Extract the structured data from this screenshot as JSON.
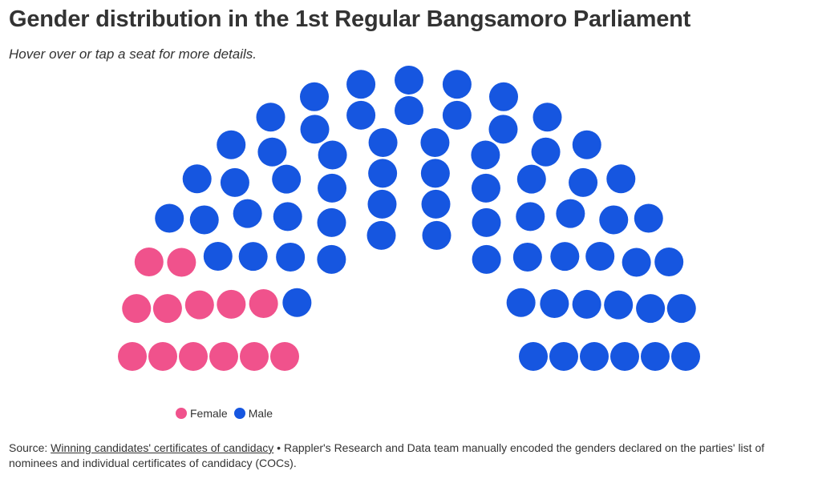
{
  "header": {
    "title": "Gender distribution in the 1st Regular Bangsamoro Parliament",
    "subtitle": "Hover over or tap a seat for more details."
  },
  "colors": {
    "female": "#f0528c",
    "male": "#1656e0"
  },
  "legend": {
    "items": [
      {
        "label": "Female",
        "color": "#f0528c"
      },
      {
        "label": "Male",
        "color": "#1656e0"
      }
    ]
  },
  "source": {
    "prefix": "Source: ",
    "link_text": "Winning candidates' certificates of candidacy",
    "separator": " • ",
    "note": "Rappler's Research and Data team manually encoded the genders declared on the parties' list of nominees and individual certificates of candidacy (COCs)."
  },
  "chart_data": {
    "type": "parliament",
    "title": "Gender distribution in the 1st Regular Bangsamoro Parliament",
    "total_seats": 80,
    "series": [
      {
        "name": "Female",
        "value": 13
      },
      {
        "name": "Male",
        "value": 67
      }
    ]
  }
}
